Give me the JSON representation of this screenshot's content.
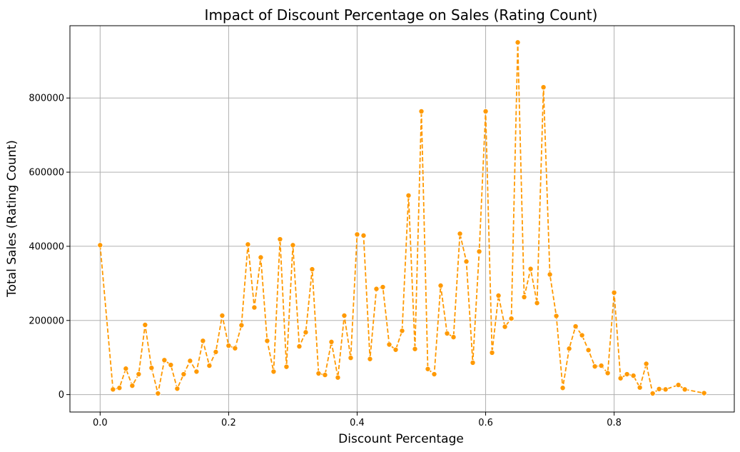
{
  "chart_data": {
    "type": "line",
    "title": "Impact of Discount Percentage on Sales (Rating Count)",
    "xlabel": "Discount Percentage",
    "ylabel": "Total Sales (Rating Count)",
    "xlim": [
      -0.047,
      0.987
    ],
    "ylim": [
      -47000,
      995000
    ],
    "xticks": [
      0.0,
      0.2,
      0.4,
      0.6,
      0.8
    ],
    "xtick_labels": [
      "0.0",
      "0.2",
      "0.4",
      "0.6",
      "0.8"
    ],
    "yticks": [
      0,
      200000,
      400000,
      600000,
      800000
    ],
    "ytick_labels": [
      "0",
      "200000",
      "400000",
      "600000",
      "800000"
    ],
    "grid": true,
    "line_style": "dashed",
    "marker": "circle",
    "color": "#ff9900",
    "series": [
      {
        "x": [
          0.0,
          0.02,
          0.03,
          0.04,
          0.05,
          0.06,
          0.07,
          0.08,
          0.09,
          0.1,
          0.11,
          0.12,
          0.13,
          0.14,
          0.15,
          0.16,
          0.17,
          0.18,
          0.19,
          0.2,
          0.21,
          0.22,
          0.23,
          0.24,
          0.25,
          0.26,
          0.27,
          0.28,
          0.29,
          0.3,
          0.31,
          0.32,
          0.33,
          0.34,
          0.35,
          0.36,
          0.37,
          0.38,
          0.39,
          0.4,
          0.41,
          0.42,
          0.43,
          0.44,
          0.45,
          0.46,
          0.47,
          0.48,
          0.49,
          0.5,
          0.51,
          0.52,
          0.53,
          0.54,
          0.55,
          0.56,
          0.57,
          0.58,
          0.59,
          0.6,
          0.61,
          0.62,
          0.63,
          0.64,
          0.65,
          0.66,
          0.67,
          0.68,
          0.69,
          0.7,
          0.71,
          0.72,
          0.73,
          0.74,
          0.75,
          0.76,
          0.77,
          0.78,
          0.79,
          0.8,
          0.81,
          0.82,
          0.83,
          0.84,
          0.85,
          0.86,
          0.87,
          0.88,
          0.9,
          0.91,
          0.94
        ],
        "y": [
          403000,
          14000,
          18000,
          70000,
          24000,
          55000,
          188000,
          72000,
          3000,
          93000,
          80000,
          16000,
          55000,
          91000,
          62000,
          145000,
          78000,
          115000,
          213000,
          132000,
          125000,
          187000,
          405000,
          235000,
          370000,
          145000,
          62000,
          419000,
          75000,
          403000,
          130000,
          168000,
          338000,
          57000,
          53000,
          142000,
          46000,
          213000,
          99000,
          432000,
          429000,
          96000,
          285000,
          290000,
          135000,
          121000,
          172000,
          537000,
          123000,
          764000,
          69000,
          55000,
          294000,
          165000,
          155000,
          434000,
          359000,
          86000,
          386000,
          764000,
          113000,
          267000,
          183000,
          205000,
          950000,
          263000,
          339000,
          247000,
          829000,
          324000,
          212000,
          18000,
          124000,
          184000,
          160000,
          120000,
          76000,
          78000,
          58000,
          275000,
          44000,
          55000,
          51000,
          19000,
          83000,
          3000,
          15000,
          14000,
          26000,
          14000,
          4000
        ]
      }
    ]
  }
}
